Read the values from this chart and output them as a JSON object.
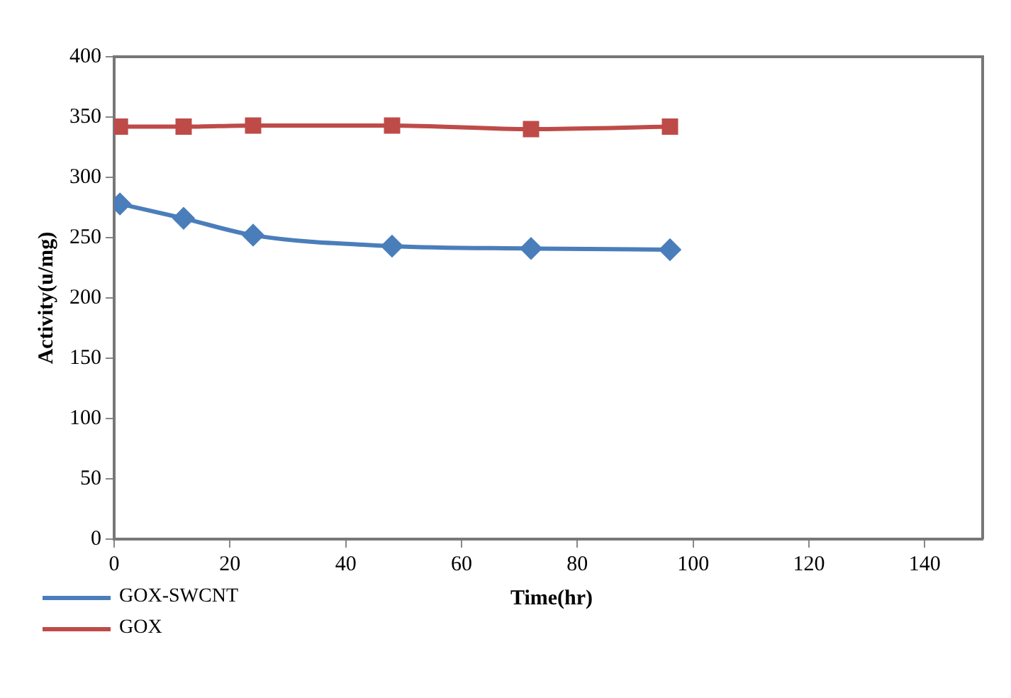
{
  "chart_data": {
    "type": "line",
    "xlabel": "Time(hr)",
    "ylabel": "Activity(u/mg)",
    "xlim": [
      0,
      150
    ],
    "xticks": [
      0,
      20,
      40,
      60,
      80,
      100,
      120,
      140
    ],
    "ylim": [
      0,
      400
    ],
    "yticks": [
      0,
      50,
      100,
      150,
      200,
      250,
      300,
      350,
      400
    ],
    "grid": false,
    "legend": "bottom left",
    "series": [
      {
        "name": "GOX-SWCNT",
        "color": "#4a7ebb",
        "marker": "diamond",
        "x": [
          1,
          12,
          24,
          48,
          72,
          96
        ],
        "values": [
          278,
          266,
          252,
          243,
          241,
          240
        ]
      },
      {
        "name": "GOX",
        "color": "#be4b48",
        "marker": "square",
        "x": [
          1,
          12,
          24,
          48,
          72,
          96
        ],
        "values": [
          342,
          342,
          343,
          343,
          340,
          342
        ]
      }
    ]
  }
}
